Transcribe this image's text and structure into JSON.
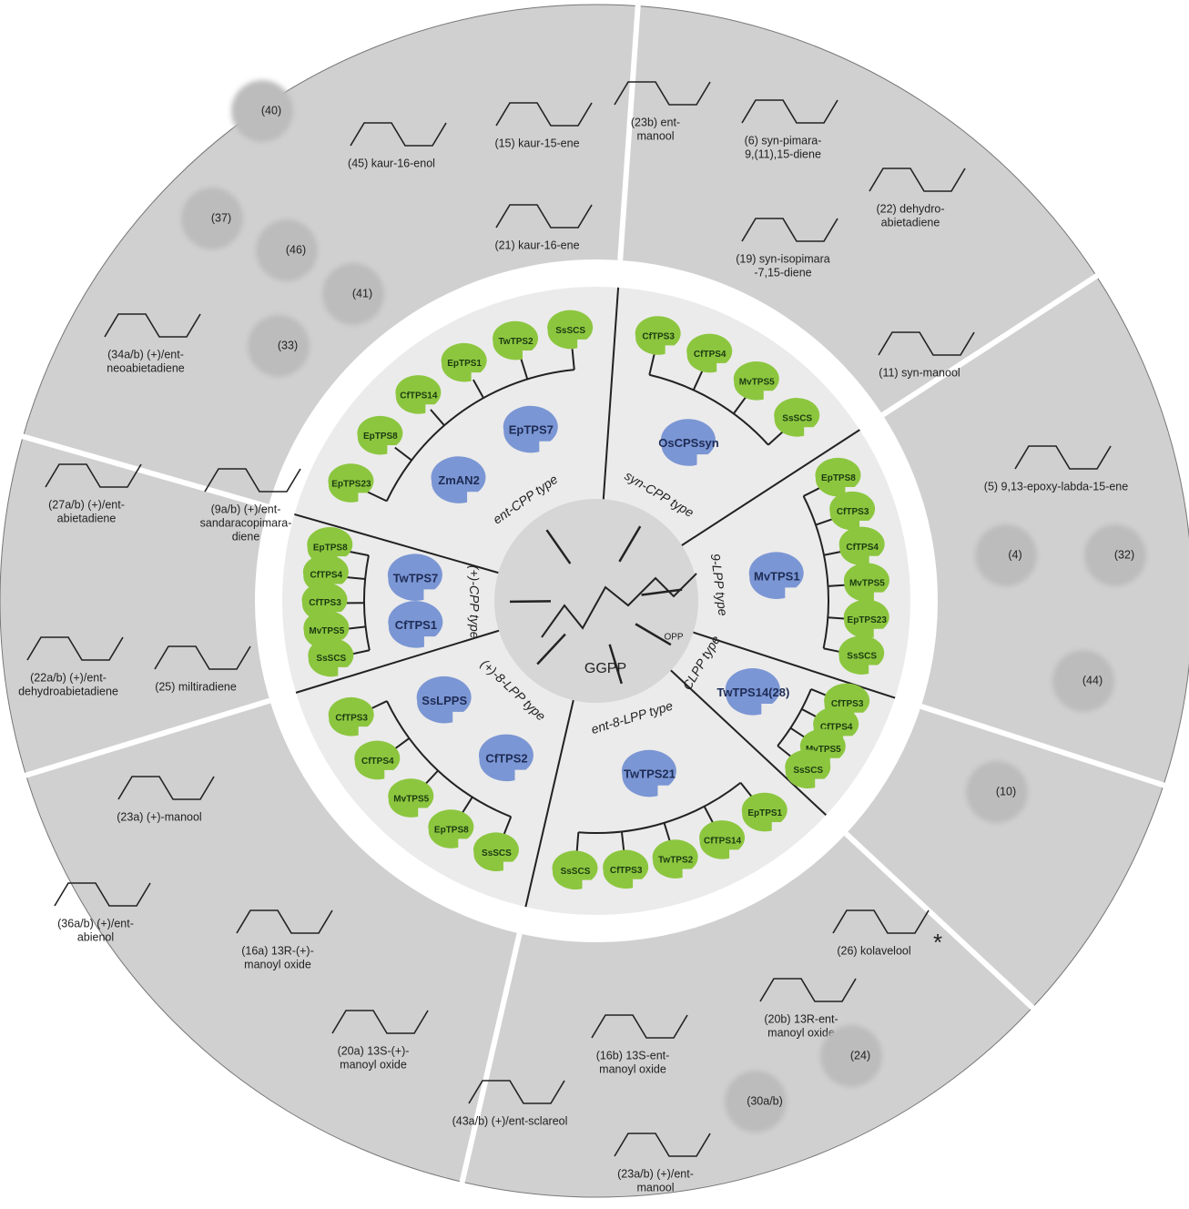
{
  "center": {
    "substrate": "GGPP",
    "group": "OPP"
  },
  "sectors": [
    {
      "label": "syn-CPP type",
      "blue": [
        "OsCPSsyn"
      ],
      "green": [
        "CfTPS3",
        "CfTPS4",
        "MvTPS5",
        "SsSCS"
      ]
    },
    {
      "label": "9-LPP type",
      "blue": [
        "MvTPS1"
      ],
      "green": [
        "EpTPS8",
        "CfTPS3",
        "CfTPS4",
        "MvTPS5",
        "EpTPS23",
        "SsSCS"
      ]
    },
    {
      "label": "CLPP type",
      "blue": [
        "TwTPS14(28)"
      ],
      "green": [
        "CfTPS3",
        "CfTPS4",
        "MvTPS5",
        "SsSCS"
      ]
    },
    {
      "label": "ent-8-LPP type",
      "blue": [
        "TwTPS21"
      ],
      "green": [
        "EpTPS1",
        "CfTPS14",
        "TwTPS2",
        "CfTPS3",
        "SsSCS"
      ]
    },
    {
      "label": "(+)-8-LPP type",
      "blue": [
        "CfTPS2",
        "SsLPPS"
      ],
      "green": [
        "SsSCS",
        "EpTPS8",
        "MvTPS5",
        "CfTPS4",
        "CfTPS3"
      ]
    },
    {
      "label": "(+)-CPP type",
      "blue": [
        "CfTPS1",
        "TwTPS7"
      ],
      "green": [
        "SsSCS",
        "MvTPS5",
        "CfTPS3",
        "CfTPS4",
        "EpTPS8"
      ]
    },
    {
      "label": "ent-CPP type",
      "blue": [
        "ZmAN2",
        "EpTPS7"
      ],
      "green": [
        "EpTPS23",
        "EpTPS8",
        "CfTPS14",
        "EpTPS1",
        "TwTPS2",
        "SsSCS"
      ]
    }
  ],
  "products": [
    {
      "label": [
        "(45) kaur-16-enol"
      ]
    },
    {
      "label": [
        "(15) kaur-15-ene"
      ]
    },
    {
      "label": [
        "(21) kaur-16-ene"
      ]
    },
    {
      "label": [
        "(23b) ent-",
        "manool"
      ]
    },
    {
      "label": [
        "(6) syn-pimara-",
        "9,(11),15-diene"
      ]
    },
    {
      "label": [
        "(22) dehydro-",
        "abietadiene"
      ]
    },
    {
      "label": [
        "(19) syn-isopimara",
        "-7,15-diene"
      ]
    },
    {
      "label": [
        "(11) syn-manool"
      ]
    },
    {
      "label": [
        "(5) 9,13-epoxy-labda-15-ene"
      ]
    },
    {
      "label": [
        "(4)"
      ]
    },
    {
      "label": [
        "(32)"
      ]
    },
    {
      "label": [
        "(44)"
      ]
    },
    {
      "label": [
        "(10)"
      ]
    },
    {
      "label": [
        "(26) kolavelool",
        "*"
      ]
    },
    {
      "label": [
        "(20b) 13R-ent-",
        "manoyl oxide"
      ]
    },
    {
      "label": [
        "(24)"
      ]
    },
    {
      "label": [
        "(16b) 13S-ent-",
        "manoyl oxide"
      ]
    },
    {
      "label": [
        "(30a/b)"
      ]
    },
    {
      "label": [
        "(23a/b) (+)/ent-",
        "manool"
      ]
    },
    {
      "label": [
        "(43a/b) (+)/ent-sclareol"
      ]
    },
    {
      "label": [
        "(20a) 13S-(+)-",
        "manoyl oxide"
      ]
    },
    {
      "label": [
        "(16a) 13R-(+)-",
        "manoyl oxide"
      ]
    },
    {
      "label": [
        "(36a/b) (+)/ent-",
        "abienol"
      ]
    },
    {
      "label": [
        "(23a) (+)-manool"
      ]
    },
    {
      "label": [
        "(25) miltiradiene"
      ]
    },
    {
      "label": [
        "(22a/b) (+)/ent-",
        "dehydroabietadiene"
      ]
    },
    {
      "label": [
        "(27a/b) (+)/ent-",
        "abietadiene"
      ]
    },
    {
      "label": [
        "(9a/b) (+)/ent-",
        "sandaracopimara-",
        "diene"
      ]
    },
    {
      "label": [
        "(34a/b) (+)/ent-",
        "neoabietadiene"
      ]
    },
    {
      "label": [
        "(40)"
      ]
    },
    {
      "label": [
        "(37)"
      ]
    },
    {
      "label": [
        "(46)"
      ]
    },
    {
      "label": [
        "(41)"
      ]
    },
    {
      "label": [
        "(33)"
      ]
    }
  ]
}
